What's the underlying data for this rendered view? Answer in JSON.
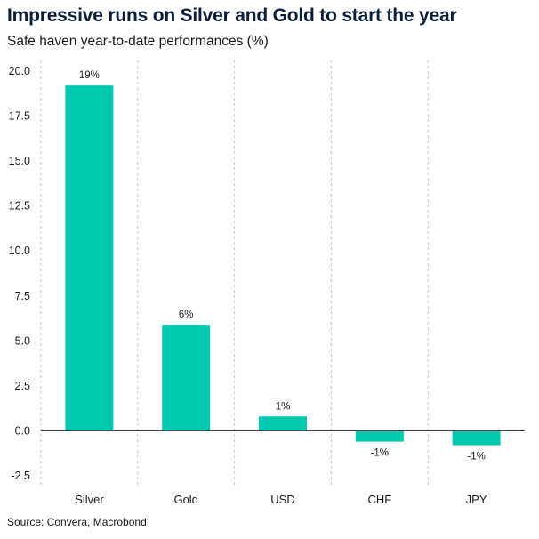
{
  "title": "Impressive runs on Silver and Gold to start the year",
  "subtitle": "Safe haven year-to-date performances (%)",
  "source": "Source: Convera, Macrobond",
  "colors": {
    "bar": "#00C9B1",
    "grid": "#c8c8c8",
    "zero_line": "#444444",
    "title": "#0b1f3a"
  },
  "chart_data": {
    "type": "bar",
    "categories": [
      "Silver",
      "Gold",
      "USD",
      "CHF",
      "JPY"
    ],
    "values": [
      19.2,
      5.9,
      0.8,
      -0.6,
      -0.8
    ],
    "data_labels": [
      "19%",
      "6%",
      "1%",
      "-1%",
      "-1%"
    ],
    "ylim": [
      -2.5,
      20.0
    ],
    "yticks": [
      -2.5,
      0.0,
      2.5,
      5.0,
      7.5,
      10.0,
      12.5,
      15.0,
      17.5,
      20.0
    ],
    "ytick_labels": [
      "-2.5",
      "0.0",
      "2.5",
      "5.0",
      "7.5",
      "10.0",
      "12.5",
      "15.0",
      "17.5",
      "20.0"
    ],
    "xlabel": "",
    "ylabel": "",
    "grid": "vertical dashed separators between categories",
    "legend": "none"
  }
}
